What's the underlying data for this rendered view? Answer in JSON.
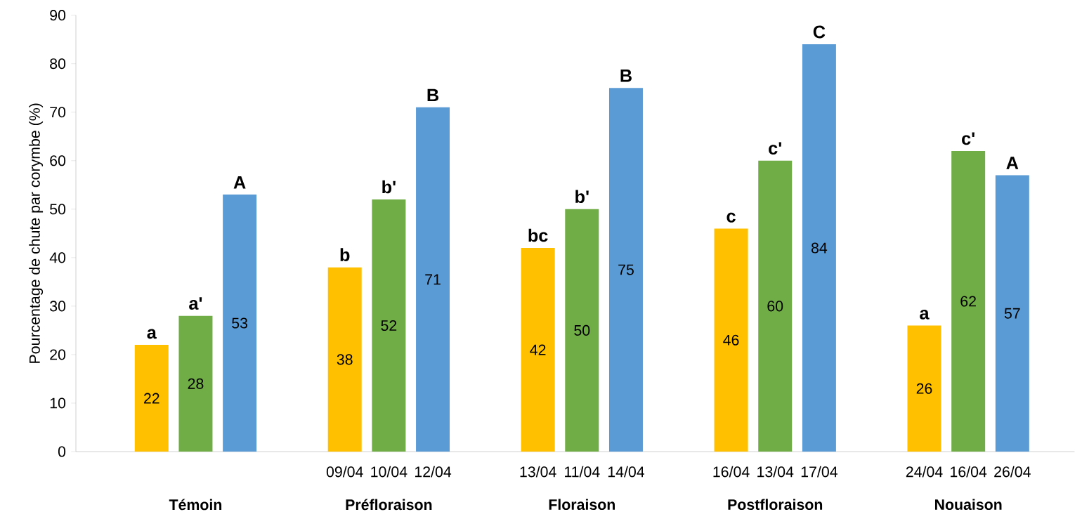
{
  "chart_data": {
    "type": "bar",
    "ylabel": "Pourcentage de chute par corymbe (%)",
    "categories": [
      "Témoin",
      "Préfloraison",
      "Floraison",
      "Postfloraison",
      "Nouaison"
    ],
    "series": [
      {
        "color": "#ffc000",
        "values": [
          22,
          38,
          42,
          46,
          26
        ]
      },
      {
        "color": "#70ad47",
        "values": [
          28,
          52,
          50,
          60,
          62
        ]
      },
      {
        "color": "#5b9bd5",
        "values": [
          53,
          71,
          75,
          84,
          57
        ]
      }
    ],
    "ylim": [
      0,
      90
    ],
    "yticks": [
      0,
      10,
      20,
      30,
      40,
      50,
      60,
      70,
      80,
      90
    ],
    "data_labels": true,
    "annotations": [
      "a",
      "a'",
      "A",
      "b",
      "b'",
      "B",
      "bc",
      "b'",
      "B",
      "c",
      "c'",
      "C",
      "a",
      "c'",
      "A",
      "09/04",
      "10/04",
      "12/04",
      "13/04",
      "11/04",
      "14/04",
      "16/04",
      "13/04",
      "17/04",
      "24/04",
      "16/04",
      "26/04"
    ]
  }
}
